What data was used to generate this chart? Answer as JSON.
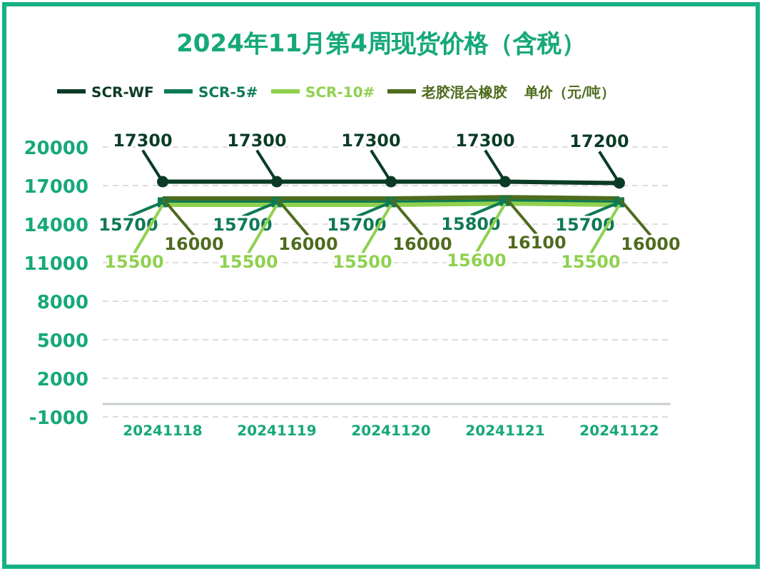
{
  "chart_data": {
    "type": "line",
    "title": "2024年11月第4周现货价格（含税）",
    "ylabel": "单价（元/吨）",
    "categories": [
      "20241118",
      "20241119",
      "20241120",
      "20241121",
      "20241122"
    ],
    "series": [
      {
        "name": "SCR-WF",
        "color": "#0b3b26",
        "marker": "circle",
        "values": [
          17300,
          17300,
          17300,
          17300,
          17200
        ]
      },
      {
        "name": "SCR-5#",
        "color": "#0e7a55",
        "marker": "square",
        "values": [
          15700,
          15700,
          15700,
          15800,
          15700
        ]
      },
      {
        "name": "SCR-10#",
        "color": "#8fd14f",
        "marker": "none",
        "values": [
          15500,
          15500,
          15500,
          15600,
          15500
        ]
      },
      {
        "name": "老胶混合橡胶",
        "color": "#4f6b1e",
        "marker": "none",
        "values": [
          16000,
          16000,
          16000,
          16100,
          16000
        ]
      }
    ],
    "ylim": [
      -1000,
      20000
    ],
    "yticks": [
      -1000,
      2000,
      5000,
      8000,
      11000,
      14000,
      17000,
      20000
    ],
    "grid": "y",
    "legend": "top",
    "data_labels": true,
    "line_style": "solid"
  }
}
